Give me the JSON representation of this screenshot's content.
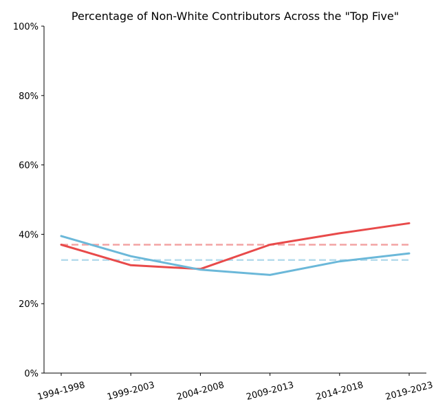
{
  "chart_data": {
    "type": "line",
    "title": "Percentage of Non-White Contributors Across the \"Top Five\"",
    "xlabel": "",
    "ylabel": "",
    "categories": [
      "1994-1998",
      "1999-2003",
      "2004-2008",
      "2009-2013",
      "2014-2018",
      "2019-2023"
    ],
    "ylim": [
      0,
      100
    ],
    "y_ticks": [
      0,
      20,
      40,
      60,
      80,
      100
    ],
    "y_tick_labels": [
      "0%",
      "20%",
      "40%",
      "60%",
      "80%",
      "100%"
    ],
    "grid": false,
    "legend": "none",
    "series": [
      {
        "values": [
          37.0,
          31.1,
          30.0,
          37.0,
          40.3,
          43.2
        ],
        "color": "#e84a4a",
        "style": "solid"
      },
      {
        "values": [
          39.5,
          33.7,
          29.8,
          28.3,
          32.2,
          34.5
        ],
        "color": "#6bb8d9",
        "style": "solid"
      }
    ],
    "reference_lines": [
      {
        "value": 37.0,
        "color": "#f3a3a3",
        "style": "dashed"
      },
      {
        "value": 32.6,
        "color": "#b5dbec",
        "style": "dashed"
      }
    ]
  }
}
